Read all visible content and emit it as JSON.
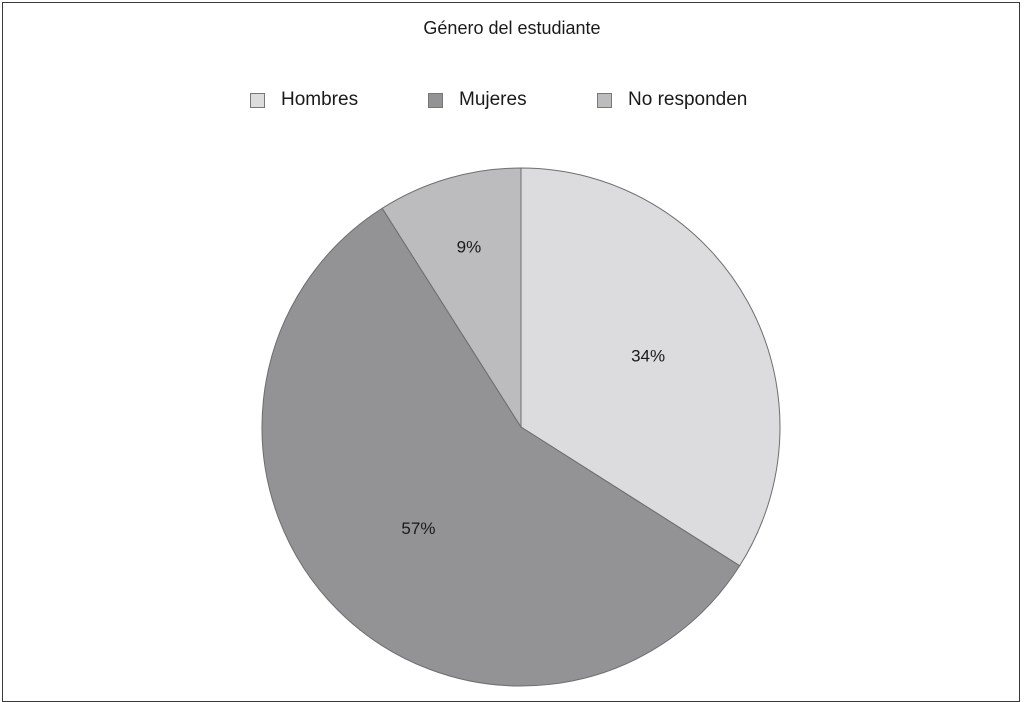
{
  "chart_data": {
    "type": "pie",
    "title": "Género del estudiante",
    "legend_position": "top",
    "categories": [
      "Hombres",
      "Mujeres",
      "No responden"
    ],
    "values": [
      34,
      57,
      9
    ],
    "labels": [
      "34%",
      "57%",
      "9%"
    ],
    "colors": [
      "#dcdcde",
      "#939396",
      "#bcbcbf"
    ],
    "start_angle_deg": 0,
    "direction": "clockwise"
  }
}
